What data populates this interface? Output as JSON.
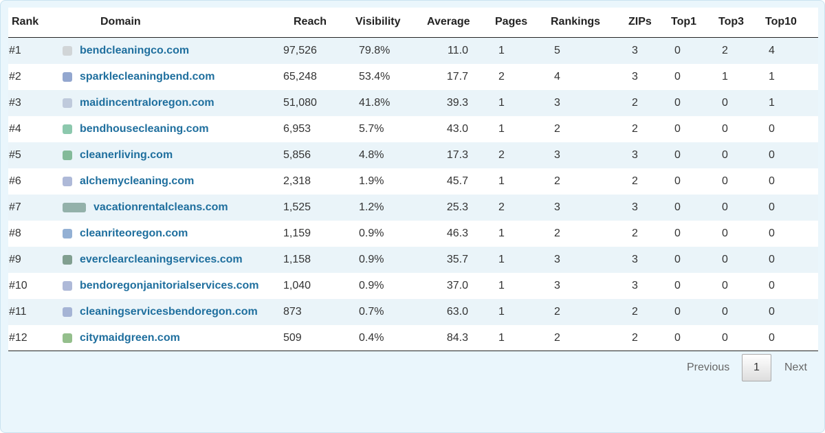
{
  "table": {
    "headers": [
      "Rank",
      "Domain",
      "Reach",
      "Visibility",
      "Average",
      "Pages",
      "Rankings",
      "ZIPs",
      "Top1",
      "Top3",
      "Top10"
    ],
    "rows": [
      [
        "#1",
        "bendcleaningco.com",
        "97,526",
        "79.8%",
        "11.0",
        "1",
        "5",
        "3",
        "0",
        "2",
        "4"
      ],
      [
        "#2",
        "sparklecleaningbend.com",
        "65,248",
        "53.4%",
        "17.7",
        "2",
        "4",
        "3",
        "0",
        "1",
        "1"
      ],
      [
        "#3",
        "maidincentraloregon.com",
        "51,080",
        "41.8%",
        "39.3",
        "1",
        "3",
        "2",
        "0",
        "0",
        "1"
      ],
      [
        "#4",
        "bendhousecleaning.com",
        "6,953",
        "5.7%",
        "43.0",
        "1",
        "2",
        "2",
        "0",
        "0",
        "0"
      ],
      [
        "#5",
        "cleanerliving.com",
        "5,856",
        "4.8%",
        "17.3",
        "2",
        "3",
        "3",
        "0",
        "0",
        "0"
      ],
      [
        "#6",
        "alchemycleaning.com",
        "2,318",
        "1.9%",
        "45.7",
        "1",
        "2",
        "2",
        "0",
        "0",
        "0"
      ],
      [
        "#7",
        "vacationrentalcleans.com",
        "1,525",
        "1.2%",
        "25.3",
        "2",
        "3",
        "3",
        "0",
        "0",
        "0"
      ],
      [
        "#8",
        "cleanriteoregon.com",
        "1,159",
        "0.9%",
        "46.3",
        "1",
        "2",
        "2",
        "0",
        "0",
        "0"
      ],
      [
        "#9",
        "everclearcleaningservices.com",
        "1,158",
        "0.9%",
        "35.7",
        "1",
        "3",
        "3",
        "0",
        "0",
        "0"
      ],
      [
        "#10",
        "bendoregonjanitorialservices.com",
        "1,040",
        "0.9%",
        "37.0",
        "1",
        "3",
        "3",
        "0",
        "0",
        "0"
      ],
      [
        "#11",
        "cleaningservicesbendoregon.com",
        "873",
        "0.7%",
        "63.0",
        "1",
        "2",
        "2",
        "0",
        "0",
        "0"
      ],
      [
        "#12",
        "citymaidgreen.com",
        "509",
        "0.4%",
        "84.3",
        "1",
        "2",
        "2",
        "0",
        "0",
        "0"
      ]
    ]
  },
  "pagination": {
    "previous": "Previous",
    "current": "1",
    "next": "Next"
  }
}
